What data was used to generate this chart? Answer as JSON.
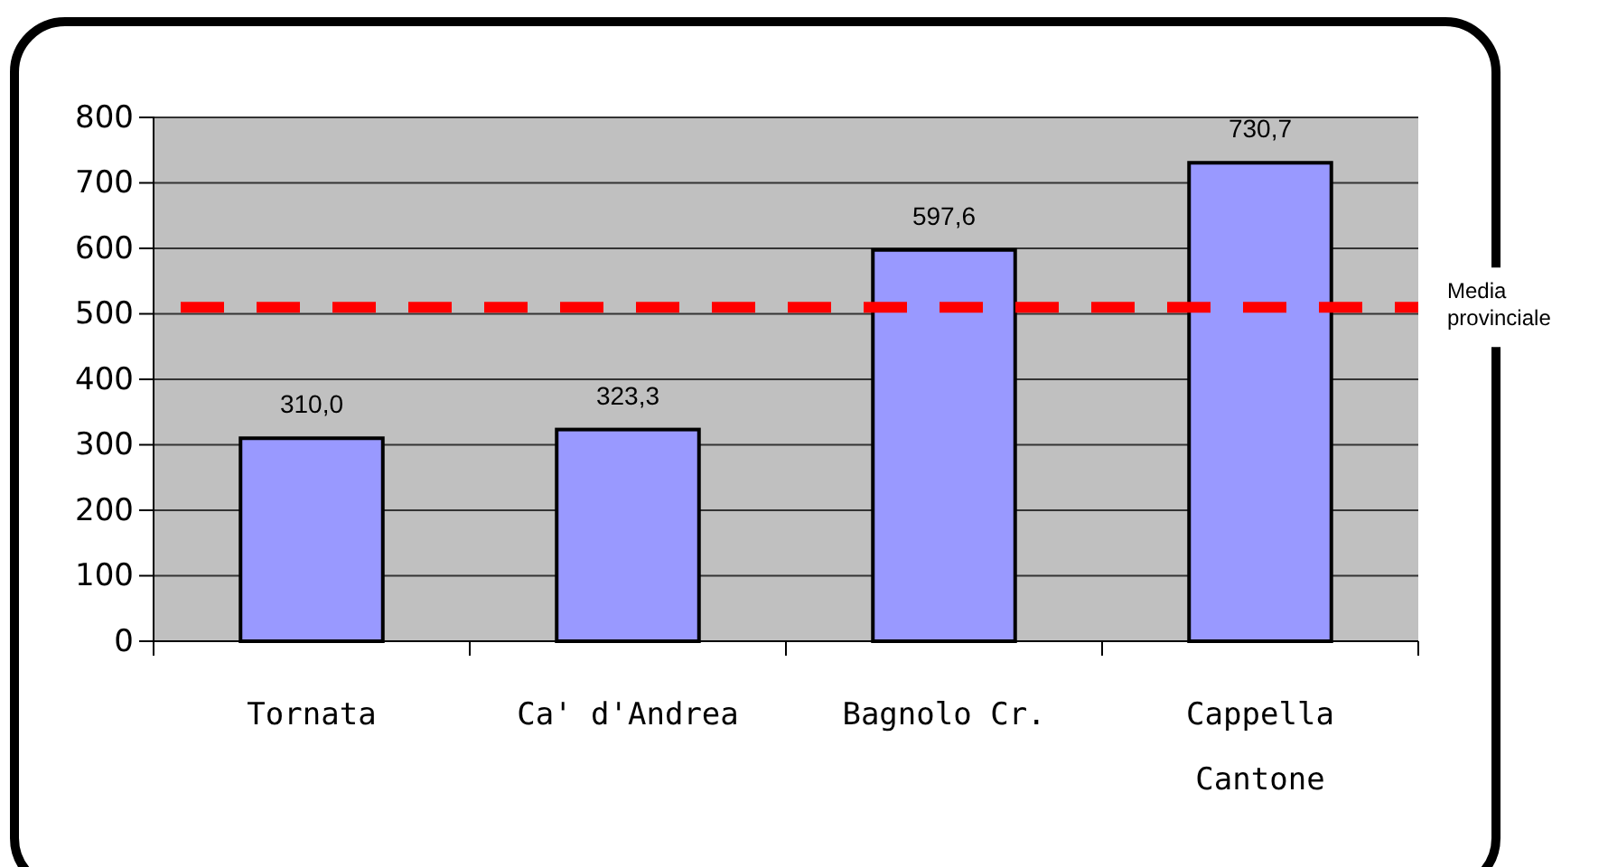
{
  "chart_data": {
    "type": "bar",
    "categories": [
      "Tornata",
      "Ca' d'Andrea",
      "Bagnolo Cr.",
      "Cappella Cantone"
    ],
    "values": [
      310.0,
      323.3,
      597.6,
      730.7
    ],
    "value_labels": [
      "310,0",
      "323,3",
      "597,6",
      "730,7"
    ],
    "color": "#9999ff",
    "ylim": [
      0,
      800
    ],
    "yticks": [
      0,
      100,
      200,
      300,
      400,
      500,
      600,
      700,
      800
    ],
    "grid": "y",
    "ref_lines": [
      {
        "axis": "y",
        "value": 510,
        "label": "Media provinciale",
        "color": "#ff0000",
        "line_style": "dashed"
      }
    ]
  }
}
